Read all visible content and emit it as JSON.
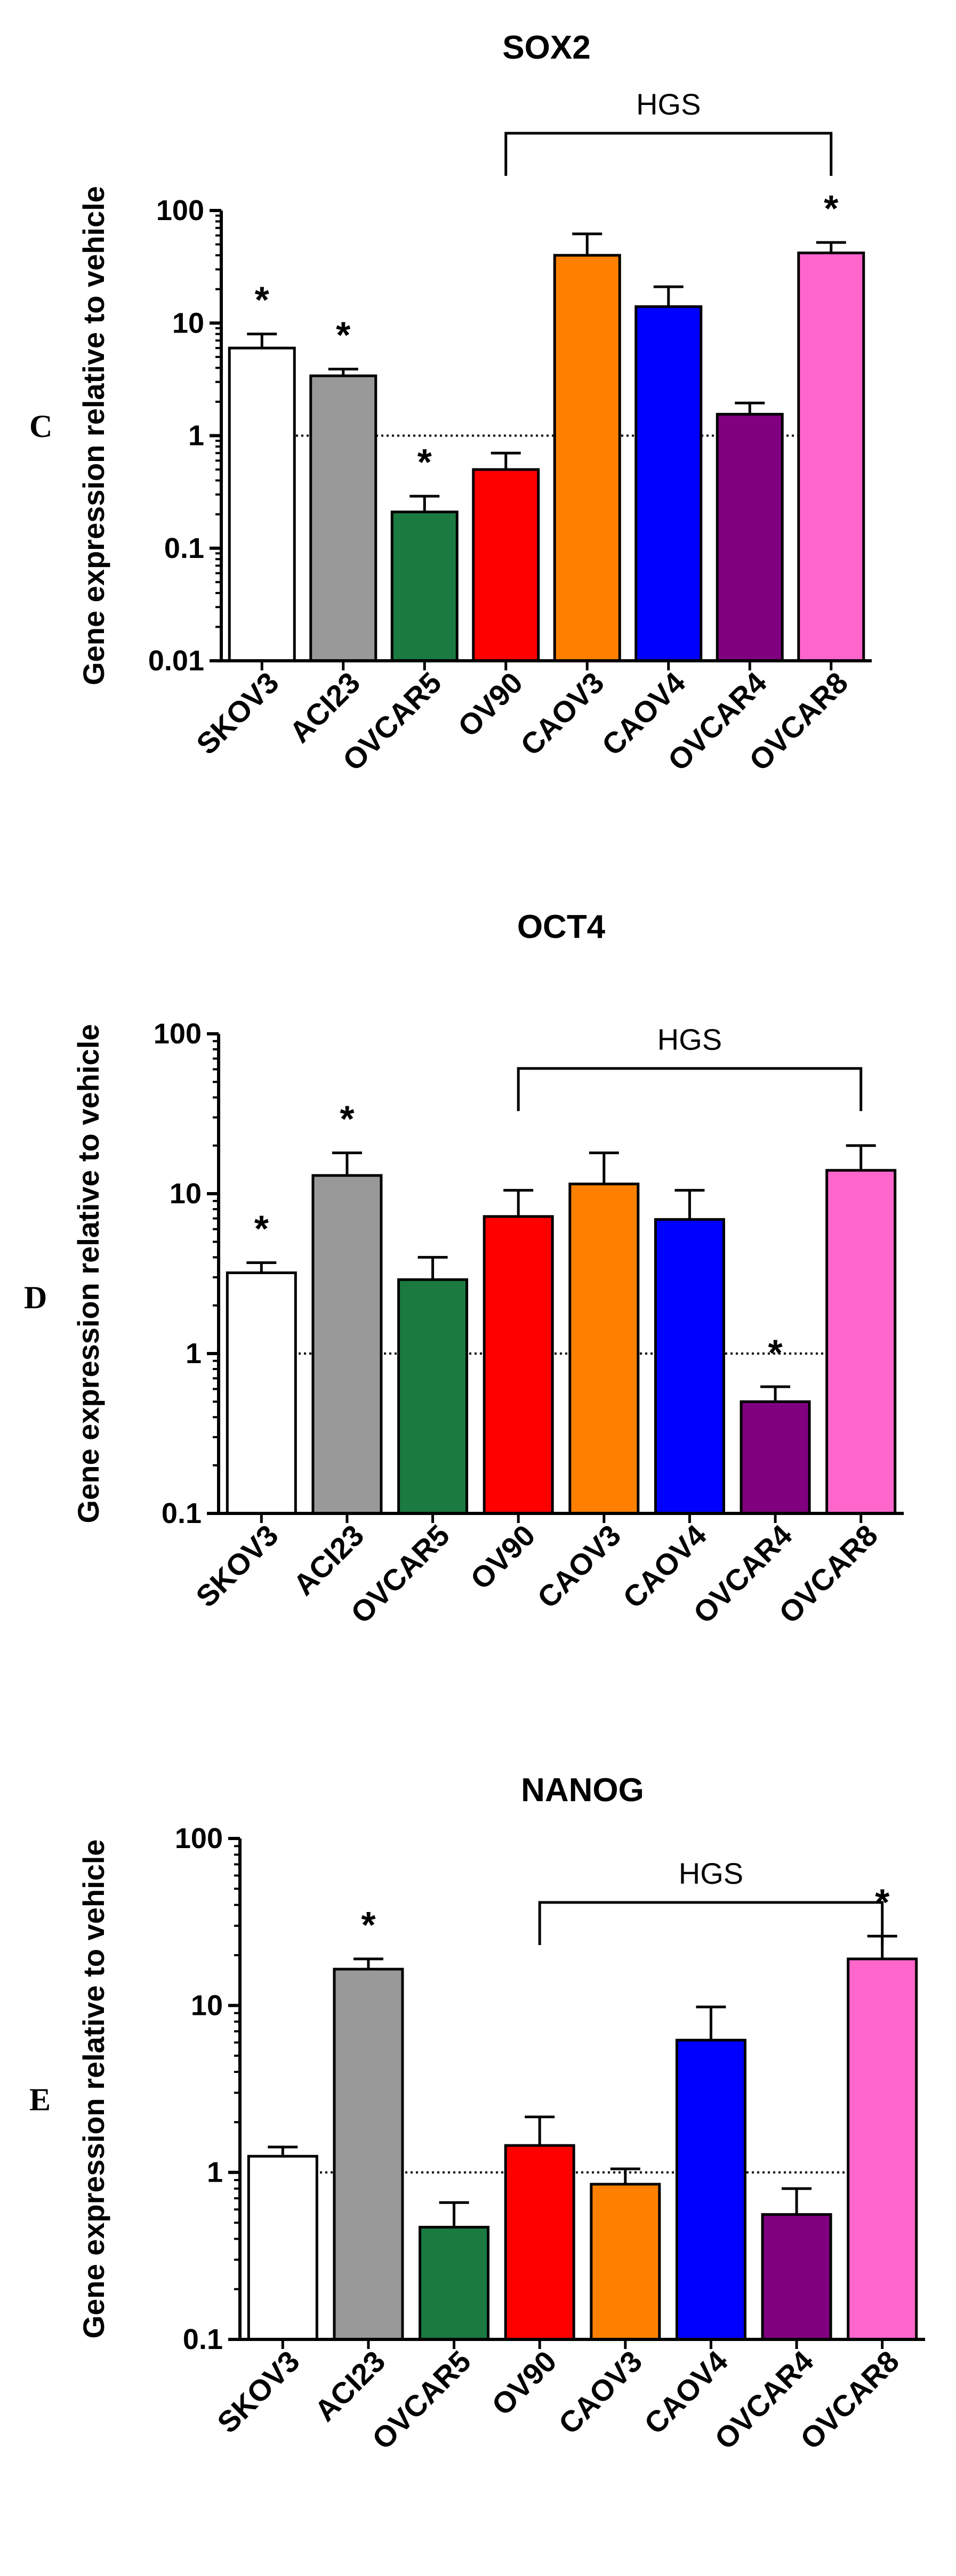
{
  "chart_data": [
    {
      "panel": "C",
      "type": "bar",
      "title": "SOX2",
      "xlabel": "",
      "ylabel": "Gene expression relative to vehicle",
      "yscale": "log",
      "ylim": [
        0.01,
        100
      ],
      "yticks": [
        "0.01",
        "0.1",
        "1",
        "10",
        "100"
      ],
      "reference_line": 1,
      "bracket_label": "HGS",
      "bracket_from": "OV90",
      "bracket_to": "OVCAR8",
      "categories": [
        "SKOV3",
        "ACI23",
        "OVCAR5",
        "OV90",
        "CAOV3",
        "CAOV4",
        "OVCAR4",
        "OVCAR8"
      ],
      "values": [
        6.0,
        3.4,
        0.21,
        0.5,
        40,
        14,
        1.55,
        42
      ],
      "errors": [
        8.0,
        3.9,
        0.29,
        0.7,
        62,
        21,
        1.95,
        52
      ],
      "significant": [
        true,
        true,
        true,
        false,
        false,
        false,
        false,
        true
      ],
      "star": "*",
      "colors": [
        "#ffffff",
        "#999999",
        "#1a7a40",
        "#ff0000",
        "#ff8000",
        "#0000ff",
        "#800080",
        "#ff66cc"
      ]
    },
    {
      "panel": "D",
      "type": "bar",
      "title": "OCT4",
      "xlabel": "",
      "ylabel": "Gene expression relative to vehicle",
      "yscale": "log",
      "ylim": [
        0.1,
        100
      ],
      "yticks": [
        "0.1",
        "1",
        "10",
        "100"
      ],
      "reference_line": 1,
      "bracket_label": "HGS",
      "bracket_from": "OV90",
      "bracket_to": "OVCAR8",
      "categories": [
        "SKOV3",
        "ACI23",
        "OVCAR5",
        "OV90",
        "CAOV3",
        "CAOV4",
        "OVCAR4",
        "OVCAR8"
      ],
      "values": [
        3.2,
        13,
        2.9,
        7.2,
        11.5,
        6.9,
        0.5,
        14
      ],
      "errors": [
        3.7,
        18,
        4.0,
        10.5,
        18,
        10.5,
        0.62,
        20
      ],
      "significant": [
        true,
        true,
        false,
        false,
        false,
        false,
        true,
        false
      ],
      "star": "*",
      "colors": [
        "#ffffff",
        "#999999",
        "#1a7a40",
        "#ff0000",
        "#ff8000",
        "#0000ff",
        "#800080",
        "#ff66cc"
      ]
    },
    {
      "panel": "E",
      "type": "bar",
      "title": "NANOG",
      "xlabel": "",
      "ylabel": "Gene expression relative to vehicle",
      "yscale": "log",
      "ylim": [
        0.1,
        100
      ],
      "yticks": [
        "0.1",
        "1",
        "10",
        "100"
      ],
      "reference_line": 1,
      "bracket_label": "HGS",
      "bracket_from": "OV90",
      "bracket_to": "OVCAR8",
      "categories": [
        "SKOV3",
        "ACI23",
        "OVCAR5",
        "OV90",
        "CAOV3",
        "CAOV4",
        "OVCAR4",
        "OVCAR8"
      ],
      "values": [
        1.25,
        16.5,
        0.47,
        1.45,
        0.85,
        6.2,
        0.56,
        19
      ],
      "errors": [
        1.42,
        19,
        0.66,
        2.15,
        1.05,
        9.8,
        0.8,
        26
      ],
      "significant": [
        false,
        true,
        false,
        false,
        false,
        false,
        false,
        true
      ],
      "star": "*",
      "colors": [
        "#ffffff",
        "#999999",
        "#1a7a40",
        "#ff0000",
        "#ff8000",
        "#0000ff",
        "#800080",
        "#ff66cc"
      ]
    }
  ]
}
